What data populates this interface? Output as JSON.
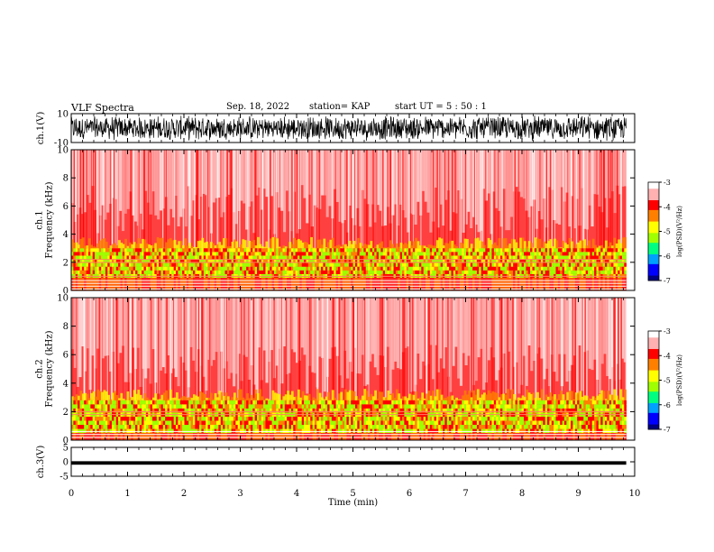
{
  "header": {
    "title": "VLF Spectra",
    "date": "Sep. 18, 2022",
    "station": "station= KAP",
    "start": "start  UT =   5  : 50 : 1"
  },
  "chart_data": [
    {
      "type": "line",
      "panel": "ch1-waveform",
      "ylabel": "ch.1(V)",
      "ylim": [
        -10,
        10
      ],
      "yticks": [
        "10",
        "-10"
      ],
      "xlim": [
        0,
        10
      ],
      "description_note_none": "",
      "series": [
        {
          "values_range": [
            -10,
            10
          ],
          "end_time_min": 9.85
        }
      ]
    },
    {
      "type": "heatmap",
      "panel": "ch1-spectrogram",
      "ylabel": "ch.1\nFrequency (kHz)",
      "ylabel_lines": [
        "ch.1",
        "Frequency  (kHz)"
      ],
      "ylim": [
        0,
        10
      ],
      "yticks": [
        "0",
        "2",
        "4",
        "6",
        "8",
        "10"
      ],
      "xlim": [
        0,
        10
      ],
      "end_time_min": 9.85,
      "colorbar": {
        "label": "log(PSD)(V²/Hz)",
        "range": [
          -7,
          -3
        ],
        "ticks": [
          "-3",
          "-4",
          "-5",
          "-6",
          "-7"
        ]
      },
      "bands_khz": {
        "strong_green": [
          0.9,
          3.0
        ],
        "lines": [
          0.1,
          0.3,
          0.5,
          0.7,
          1.0,
          2.0,
          2.2
        ]
      }
    },
    {
      "type": "heatmap",
      "panel": "ch2-spectrogram",
      "ylabel_lines": [
        "ch.2",
        "Frequency  (kHz)"
      ],
      "ylim": [
        0,
        10
      ],
      "yticks": [
        "0",
        "2",
        "4",
        "6",
        "8",
        "10"
      ],
      "xlim": [
        0,
        10
      ],
      "end_time_min": 9.85,
      "colorbar": {
        "label": "log(PSD)(V²/Hz)",
        "range": [
          -7,
          -3
        ],
        "ticks": [
          "-3",
          "-4",
          "-5",
          "-6",
          "-7"
        ]
      },
      "bands_khz": {
        "strong_green": [
          0.5,
          2.8
        ],
        "lines": [
          0.2,
          0.4,
          0.6,
          1.8,
          2.0
        ]
      }
    },
    {
      "type": "line",
      "panel": "ch3-waveform",
      "ylabel": "ch.3(V)",
      "ylim": [
        -5,
        5
      ],
      "yticks": [
        "5",
        "0",
        "-5"
      ],
      "xlim": [
        0,
        10
      ],
      "series": [
        {
          "values_range": [
            -1,
            0.2
          ],
          "end_time_min": 9.85
        }
      ]
    }
  ],
  "xaxis": {
    "label": "Time  (min)",
    "ticks": [
      "0",
      "1",
      "2",
      "3",
      "4",
      "5",
      "6",
      "7",
      "8",
      "9",
      "10"
    ]
  },
  "colors": {
    "cmap": [
      "#000080",
      "#0000ff",
      "#00a0ff",
      "#00ff80",
      "#a0ff00",
      "#ffff00",
      "#ff8000",
      "#ff0000",
      "#ffb0b0",
      "#ffffff"
    ]
  }
}
